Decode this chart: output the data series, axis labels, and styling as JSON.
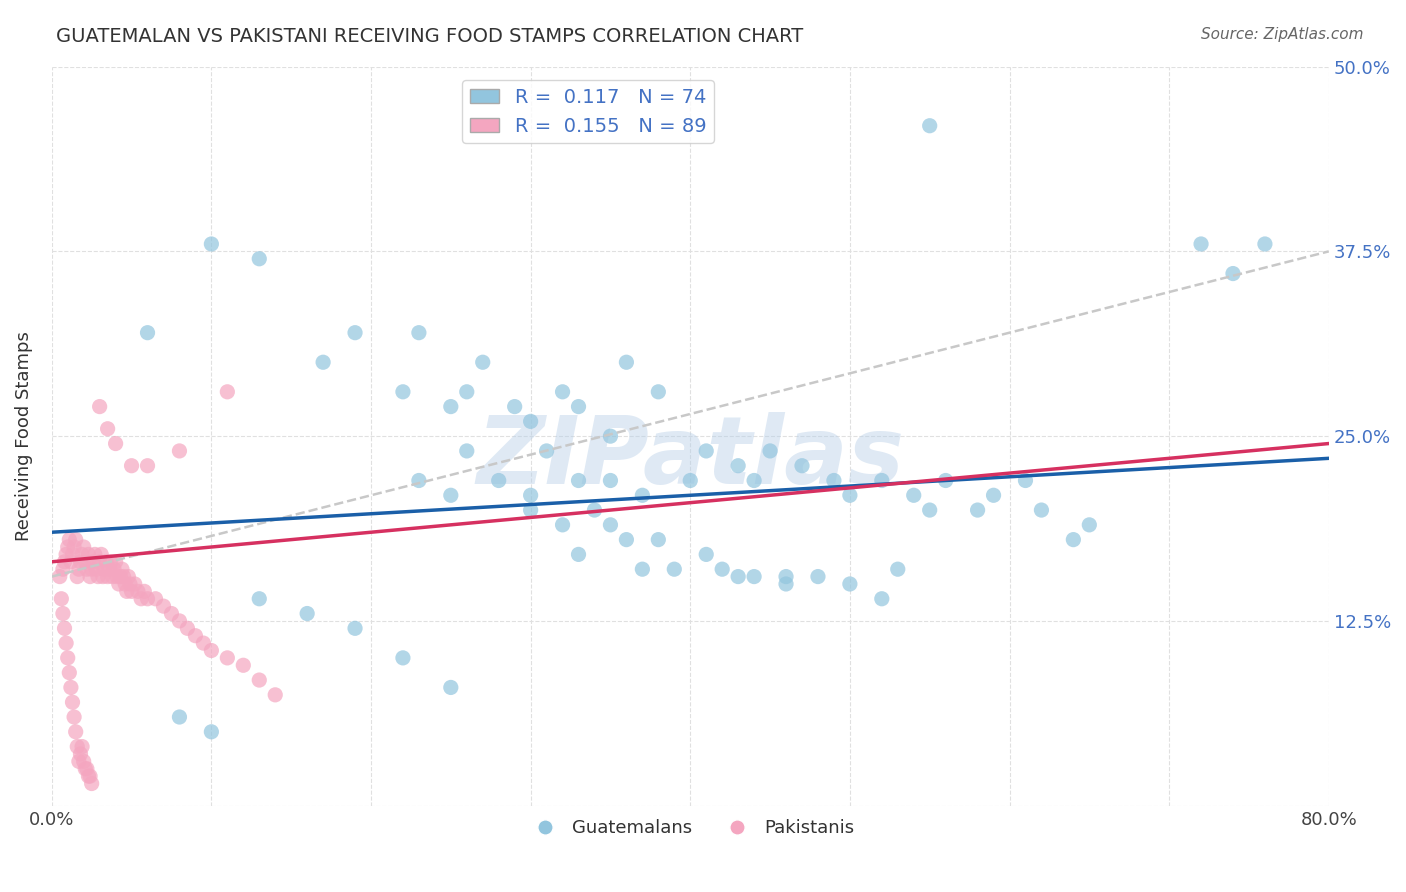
{
  "title": "GUATEMALAN VS PAKISTANI RECEIVING FOOD STAMPS CORRELATION CHART",
  "source": "Source: ZipAtlas.com",
  "ylabel": "Receiving Food Stamps",
  "xlim": [
    0.0,
    0.8
  ],
  "ylim": [
    0.0,
    0.5
  ],
  "xticks": [
    0.0,
    0.1,
    0.2,
    0.3,
    0.4,
    0.5,
    0.6,
    0.7,
    0.8
  ],
  "xticklabels": [
    "0.0%",
    "",
    "",
    "",
    "",
    "",
    "",
    "",
    "80.0%"
  ],
  "yticks": [
    0.0,
    0.125,
    0.25,
    0.375,
    0.5
  ],
  "ytick_left_labels": [
    "",
    "",
    "",
    "",
    ""
  ],
  "ytick_right_labels": [
    "",
    "12.5%",
    "25.0%",
    "37.5%",
    "50.0%"
  ],
  "guatemalan_color": "#92c5de",
  "pakistani_color": "#f4a6c0",
  "guatemalan_line_color": "#1a5fa8",
  "pakistani_line_color": "#d63060",
  "dashed_line_color": "#c8c8c8",
  "R_guatemalan": 0.117,
  "N_guatemalan": 74,
  "R_pakistani": 0.155,
  "N_pakistani": 89,
  "legend_label_guatemalan": "Guatemalans",
  "legend_label_pakistani": "Pakistanis",
  "watermark": "ZIPatlas",
  "background_color": "#ffffff",
  "grid_color": "#e0e0e0",
  "guatemalan_x": [
    0.06,
    0.1,
    0.13,
    0.17,
    0.19,
    0.22,
    0.23,
    0.25,
    0.26,
    0.27,
    0.29,
    0.3,
    0.32,
    0.33,
    0.35,
    0.36,
    0.38,
    0.4,
    0.41,
    0.43,
    0.44,
    0.45,
    0.47,
    0.49,
    0.5,
    0.52,
    0.54,
    0.55,
    0.56,
    0.58,
    0.59,
    0.61,
    0.62,
    0.64,
    0.65,
    0.3,
    0.32,
    0.33,
    0.35,
    0.36,
    0.37,
    0.38,
    0.39,
    0.41,
    0.42,
    0.44,
    0.46,
    0.48,
    0.5,
    0.52,
    0.53,
    0.43,
    0.46,
    0.23,
    0.25,
    0.26,
    0.28,
    0.3,
    0.31,
    0.33,
    0.34,
    0.35,
    0.37,
    0.13,
    0.16,
    0.19,
    0.22,
    0.25,
    0.08,
    0.1,
    0.72,
    0.74,
    0.76,
    0.55
  ],
  "guatemalan_y": [
    0.32,
    0.38,
    0.37,
    0.3,
    0.32,
    0.28,
    0.32,
    0.27,
    0.28,
    0.3,
    0.27,
    0.26,
    0.28,
    0.27,
    0.25,
    0.3,
    0.28,
    0.22,
    0.24,
    0.23,
    0.22,
    0.24,
    0.23,
    0.22,
    0.21,
    0.22,
    0.21,
    0.2,
    0.22,
    0.2,
    0.21,
    0.22,
    0.2,
    0.18,
    0.19,
    0.2,
    0.19,
    0.17,
    0.19,
    0.18,
    0.16,
    0.18,
    0.16,
    0.17,
    0.16,
    0.155,
    0.15,
    0.155,
    0.15,
    0.14,
    0.16,
    0.155,
    0.155,
    0.22,
    0.21,
    0.24,
    0.22,
    0.21,
    0.24,
    0.22,
    0.2,
    0.22,
    0.21,
    0.14,
    0.13,
    0.12,
    0.1,
    0.08,
    0.06,
    0.05,
    0.38,
    0.36,
    0.38,
    0.46
  ],
  "pakistani_x": [
    0.005,
    0.007,
    0.008,
    0.009,
    0.01,
    0.011,
    0.012,
    0.013,
    0.014,
    0.015,
    0.016,
    0.017,
    0.018,
    0.019,
    0.02,
    0.021,
    0.022,
    0.023,
    0.024,
    0.025,
    0.026,
    0.027,
    0.028,
    0.029,
    0.03,
    0.031,
    0.032,
    0.033,
    0.034,
    0.035,
    0.036,
    0.037,
    0.038,
    0.039,
    0.04,
    0.041,
    0.042,
    0.043,
    0.044,
    0.045,
    0.046,
    0.047,
    0.048,
    0.049,
    0.05,
    0.052,
    0.054,
    0.056,
    0.058,
    0.06,
    0.065,
    0.07,
    0.075,
    0.08,
    0.085,
    0.09,
    0.095,
    0.1,
    0.11,
    0.12,
    0.13,
    0.14,
    0.006,
    0.007,
    0.008,
    0.009,
    0.01,
    0.011,
    0.012,
    0.013,
    0.014,
    0.015,
    0.016,
    0.017,
    0.018,
    0.019,
    0.02,
    0.021,
    0.022,
    0.023,
    0.024,
    0.025,
    0.03,
    0.035,
    0.04,
    0.05,
    0.06,
    0.08,
    0.11
  ],
  "pakistani_y": [
    0.155,
    0.16,
    0.165,
    0.17,
    0.175,
    0.18,
    0.165,
    0.17,
    0.175,
    0.18,
    0.155,
    0.16,
    0.165,
    0.17,
    0.175,
    0.165,
    0.16,
    0.17,
    0.155,
    0.16,
    0.165,
    0.17,
    0.16,
    0.155,
    0.165,
    0.17,
    0.155,
    0.16,
    0.165,
    0.155,
    0.16,
    0.165,
    0.155,
    0.16,
    0.165,
    0.155,
    0.15,
    0.155,
    0.16,
    0.155,
    0.15,
    0.145,
    0.155,
    0.15,
    0.145,
    0.15,
    0.145,
    0.14,
    0.145,
    0.14,
    0.14,
    0.135,
    0.13,
    0.125,
    0.12,
    0.115,
    0.11,
    0.105,
    0.1,
    0.095,
    0.085,
    0.075,
    0.14,
    0.13,
    0.12,
    0.11,
    0.1,
    0.09,
    0.08,
    0.07,
    0.06,
    0.05,
    0.04,
    0.03,
    0.035,
    0.04,
    0.03,
    0.025,
    0.025,
    0.02,
    0.02,
    0.015,
    0.27,
    0.255,
    0.245,
    0.23,
    0.23,
    0.24,
    0.28
  ],
  "guatemalan_trend": [
    0.0,
    0.8,
    0.185,
    0.235
  ],
  "pakistani_trend": [
    0.0,
    0.3,
    0.165,
    0.195
  ],
  "dashed_trend": [
    0.0,
    0.8,
    0.155,
    0.375
  ]
}
